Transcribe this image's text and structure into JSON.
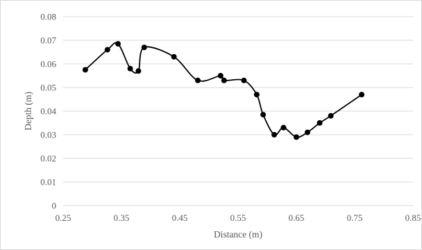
{
  "colors": {
    "series": "#000000",
    "grid": "#d9d9d9",
    "text": "#595959",
    "frame": "#d9d9d9"
  },
  "chart_data": {
    "type": "scatter",
    "xlabel": "Distance (m)",
    "ylabel": "Depth (m)",
    "xlim": [
      0.25,
      0.85
    ],
    "ylim": [
      0,
      0.08
    ],
    "x_ticks": [
      "0.25",
      "0.35",
      "0.45",
      "0.55",
      "0.65",
      "0.75",
      "0.85"
    ],
    "y_ticks": [
      "0",
      "0.01",
      "0.02",
      "0.03",
      "0.04",
      "0.05",
      "0.06",
      "0.07",
      "0.08"
    ],
    "grid": "horizontal",
    "legend": "none",
    "series": [
      {
        "marker": "circle",
        "line": "smoothed",
        "x": [
          0.288,
          0.326,
          0.344,
          0.365,
          0.379,
          0.389,
          0.44,
          0.481,
          0.52,
          0.526,
          0.56,
          0.582,
          0.593,
          0.612,
          0.628,
          0.65,
          0.669,
          0.69,
          0.709,
          0.762
        ],
        "y": [
          0.0575,
          0.066,
          0.0685,
          0.058,
          0.057,
          0.067,
          0.063,
          0.053,
          0.055,
          0.053,
          0.053,
          0.047,
          0.0385,
          0.03,
          0.033,
          0.029,
          0.031,
          0.035,
          0.038,
          0.047
        ]
      }
    ]
  }
}
